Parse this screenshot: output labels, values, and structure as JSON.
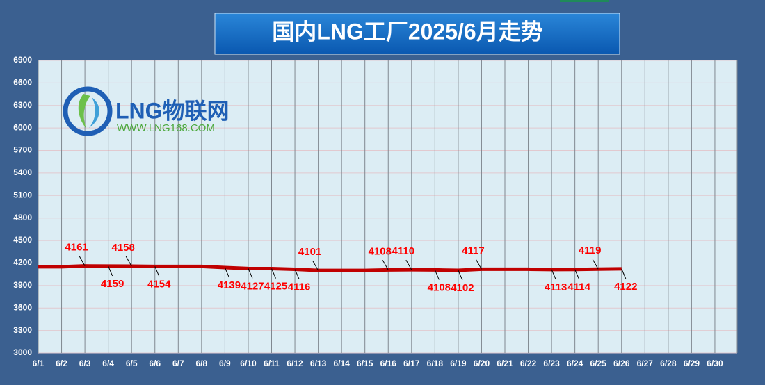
{
  "chart_data": {
    "type": "line",
    "title": "国内LNG工厂2025/6月走势",
    "logo": {
      "name": "LNG物联网",
      "url": "WWW.LNG168.COM"
    },
    "categories": [
      "6/1",
      "6/2",
      "6/3",
      "6/4",
      "6/5",
      "6/6",
      "6/7",
      "6/8",
      "6/9",
      "6/10",
      "6/11",
      "6/12",
      "6/13",
      "6/14",
      "6/15",
      "6/16",
      "6/17",
      "6/18",
      "6/19",
      "6/20",
      "6/21",
      "6/22",
      "6/23",
      "6/24",
      "6/25",
      "6/26",
      "6/27",
      "6/28",
      "6/29",
      "6/30"
    ],
    "series": [
      {
        "name": "LNG工厂",
        "color": "#c00000",
        "values": [
          4150,
          4150,
          4161,
          4159,
          4158,
          4154,
          4154,
          4154,
          4139,
          4127,
          4125,
          4116,
          4101,
          4101,
          4101,
          4108,
          4110,
          4108,
          4102,
          4117,
          4117,
          4117,
          4113,
          4114,
          4119,
          4122,
          null,
          null,
          null,
          null
        ],
        "value_labels": [
          null,
          null,
          "4161",
          "4159",
          "4158",
          "4154",
          null,
          null,
          "4139",
          "4127",
          "4125",
          "4116",
          "4101",
          null,
          null,
          "4108",
          "4110",
          "4108",
          "4102",
          "4117",
          null,
          null,
          "4113",
          "4114",
          "4119",
          "4122",
          null,
          null,
          null,
          null
        ]
      }
    ],
    "ylim": [
      3000,
      6900
    ],
    "yticks": [
      3000,
      3300,
      3600,
      3900,
      4200,
      4500,
      4800,
      5100,
      5400,
      5700,
      6000,
      6300,
      6600,
      6900
    ],
    "grid": true
  }
}
